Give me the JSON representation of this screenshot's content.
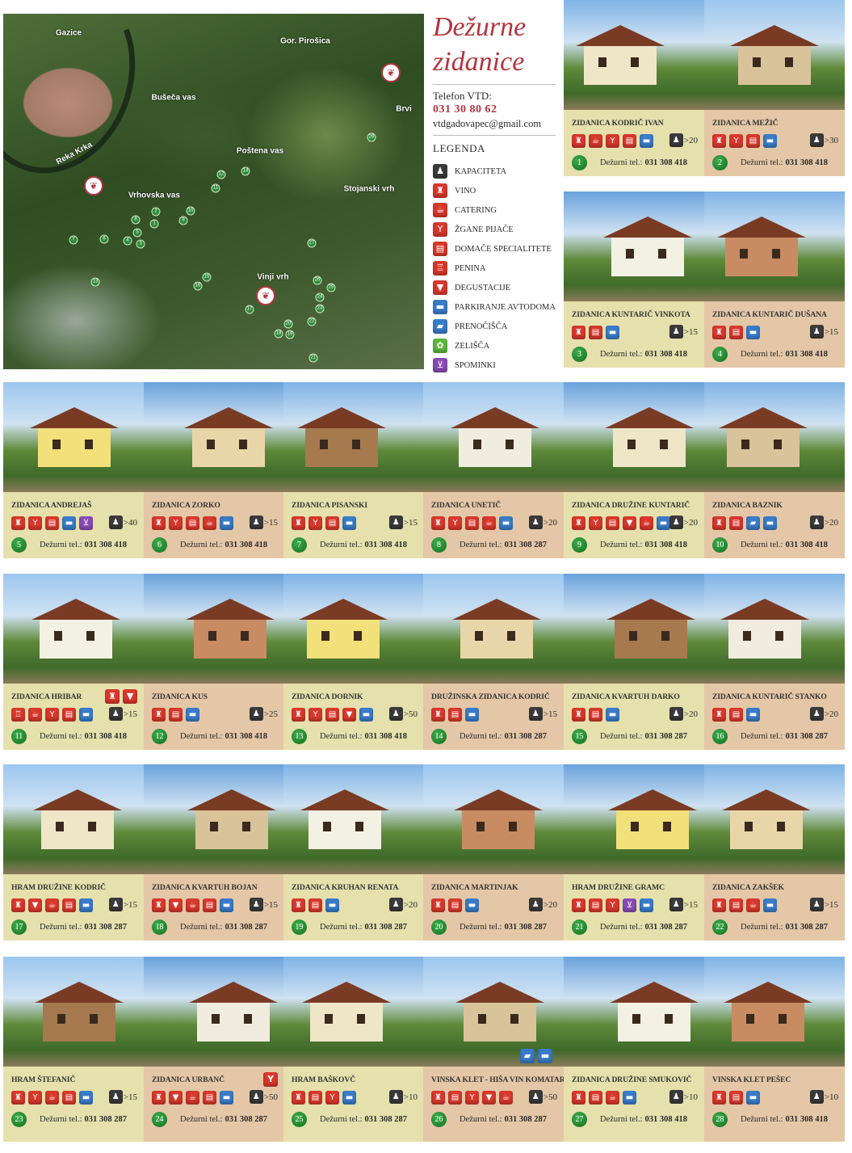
{
  "header": {
    "title_line1": "Dežurne",
    "title_line2": "zidanice",
    "phone_label": "Telefon VTD:",
    "phone": "031 30 80 62",
    "email": "vtdgadovapec@gmail.com",
    "legend_title": "LEGENDA"
  },
  "legend": [
    {
      "code": "K",
      "icon": "person-capacity-icon",
      "label": "KAPACITETA"
    },
    {
      "code": "V",
      "icon": "wine-bottle-icon",
      "label": "VINO"
    },
    {
      "code": "C",
      "icon": "catering-plate-icon",
      "label": "CATERING"
    },
    {
      "code": "Z",
      "icon": "cocktail-glass-icon",
      "label": "ŽGANE PIJAČE"
    },
    {
      "code": "D",
      "icon": "home-food-icon",
      "label": "DOMAČE SPECIALITETE"
    },
    {
      "code": "P",
      "icon": "sparkling-wine-icon",
      "label": "PENINA"
    },
    {
      "code": "G",
      "icon": "tasting-glass-icon",
      "label": "DEGUSTACIJE"
    },
    {
      "code": "A",
      "icon": "camper-van-icon",
      "label": "PARKIRANJE AVTODOMA"
    },
    {
      "code": "N",
      "icon": "bed-icon",
      "label": "PRENOČIŠČA"
    },
    {
      "code": "E",
      "icon": "herb-icon",
      "label": "ZELIŠČA"
    },
    {
      "code": "S",
      "icon": "souvenir-basket-icon",
      "label": "SPOMINKI"
    }
  ],
  "icon_colors": {
    "red": "#d9382c",
    "blue": "#3a7cc9",
    "green": "#5cb83e",
    "purple": "#8a4bb5",
    "dark": "#3a3a3a",
    "title": "#b3343f",
    "card_yellow": "#e6e0ad",
    "card_tan": "#e4c7a6"
  },
  "phone_label": "Dežurni tel.:",
  "map": {
    "labels": [
      "Gazice",
      "Gor. Pirošica",
      "Bušeča vas",
      "Brvi",
      "Reka Krka",
      "Poštena vas",
      "Vrhovska vas",
      "Stojanski vrh",
      "Vinji vrh"
    ],
    "markers": [
      "1",
      "2",
      "3",
      "4",
      "5",
      "6",
      "7",
      "8",
      "9",
      "10",
      "11",
      "12",
      "13",
      "14",
      "15",
      "16",
      "17",
      "18",
      "19",
      "20",
      "21",
      "22",
      "23",
      "24",
      "25",
      "26",
      "27",
      "28"
    ]
  },
  "cards": [
    {
      "num": "1",
      "name": "ZIDANICA KODRIČ IVAN",
      "icons": [
        "V",
        "C",
        "Z",
        "D",
        "A"
      ],
      "capacity": ">20",
      "phone": "031 308 418"
    },
    {
      "num": "2",
      "name": "ZIDANICA MEŽIČ",
      "icons": [
        "V",
        "Z",
        "D",
        "A"
      ],
      "capacity": ">30",
      "phone": "031 308 418"
    },
    {
      "num": "3",
      "name": "ZIDANICA KUNTARIČ VINKOTA",
      "icons": [
        "V",
        "D",
        "A"
      ],
      "capacity": ">15",
      "phone": "031 308 418"
    },
    {
      "num": "4",
      "name": "ZIDANICA KUNTARIČ DUŠANA",
      "icons": [
        "V",
        "D",
        "A"
      ],
      "capacity": ">15",
      "phone": "031 308 418"
    },
    {
      "num": "5",
      "name": "ZIDANICA ANDREJAŠ",
      "icons": [
        "V",
        "Z",
        "D",
        "A",
        "S"
      ],
      "capacity": ">40",
      "phone": "031 308 418"
    },
    {
      "num": "6",
      "name": "ZIDANICA ZORKO",
      "icons": [
        "V",
        "Z",
        "D",
        "C",
        "A"
      ],
      "capacity": ">15",
      "phone": "031 308 418"
    },
    {
      "num": "7",
      "name": "ZIDANICA PISANSKI",
      "icons": [
        "V",
        "Z",
        "D",
        "A"
      ],
      "capacity": ">15",
      "phone": "031 308 418"
    },
    {
      "num": "8",
      "name": "ZIDANICA UNETIČ",
      "icons": [
        "V",
        "Z",
        "D",
        "C",
        "A"
      ],
      "capacity": ">20",
      "phone": "031 308 287"
    },
    {
      "num": "9",
      "name": "ZIDANICA DRUŽINE KUNTARIČ",
      "icons": [
        "V",
        "Z",
        "D",
        "G",
        "C",
        "A"
      ],
      "capacity": ">20",
      "phone": "031 308 418"
    },
    {
      "num": "10",
      "name": "ZIDANICA BAZNIK",
      "icons": [
        "V",
        "D",
        "N",
        "A"
      ],
      "capacity": ">20",
      "phone": "031 308 418"
    },
    {
      "num": "11",
      "name": "ZIDANICA HRIBAR",
      "title_icons": [
        "V",
        "G"
      ],
      "icons": [
        "P",
        "C",
        "Z",
        "D",
        "A"
      ],
      "capacity": ">15",
      "phone": "031 308 418"
    },
    {
      "num": "12",
      "name": "ZIDANICA KUS",
      "icons": [
        "V",
        "D",
        "A"
      ],
      "capacity": ">25",
      "phone": "031 308 418"
    },
    {
      "num": "13",
      "name": "ZIDANICA DORNIK",
      "icons": [
        "V",
        "Z",
        "D",
        "G",
        "A"
      ],
      "capacity": ">50",
      "phone": "031 308 418"
    },
    {
      "num": "14",
      "name": "DRUŽINSKA ZIDANICA KODRIČ",
      "icons": [
        "V",
        "D",
        "A"
      ],
      "capacity": ">15",
      "phone": "031 308 287"
    },
    {
      "num": "15",
      "name": "ZIDANICA KVARTUH DARKO",
      "icons": [
        "V",
        "D",
        "A"
      ],
      "capacity": ">20",
      "phone": "031 308 287"
    },
    {
      "num": "16",
      "name": "ZIDANICA KUNTARIČ STANKO",
      "icons": [
        "V",
        "D",
        "A"
      ],
      "capacity": ">20",
      "phone": "031 308 287"
    },
    {
      "num": "17",
      "name": "HRAM DRUŽINE KODRIČ",
      "icons": [
        "V",
        "G",
        "C",
        "D",
        "A"
      ],
      "capacity": ">15",
      "phone": "031 308 287"
    },
    {
      "num": "18",
      "name": "ZIDANICA KVARTUH BOJAN",
      "icons": [
        "V",
        "G",
        "C",
        "D",
        "A"
      ],
      "capacity": ">15",
      "phone": "031 308 287"
    },
    {
      "num": "19",
      "name": "ZIDANICA KRUHAN RENATA",
      "icons": [
        "V",
        "D",
        "A"
      ],
      "capacity": ">20",
      "phone": "031 308 287"
    },
    {
      "num": "20",
      "name": "ZIDANICA MARTINJAK",
      "icons": [
        "V",
        "D",
        "A"
      ],
      "capacity": ">20",
      "phone": "031 308 287"
    },
    {
      "num": "21",
      "name": "HRAM DRUŽINE GRAMC",
      "icons": [
        "V",
        "D",
        "Z",
        "S",
        "A"
      ],
      "capacity": ">15",
      "phone": "031 308 287"
    },
    {
      "num": "22",
      "name": "ZIDANICA ZAKŠEK",
      "icons": [
        "V",
        "D",
        "C",
        "A"
      ],
      "capacity": ">15",
      "phone": "031 308 287"
    },
    {
      "num": "23",
      "name": "HRAM ŠTEFANIČ",
      "icons": [
        "V",
        "Z",
        "C",
        "D",
        "A"
      ],
      "capacity": ">15",
      "phone": "031 308 287"
    },
    {
      "num": "24",
      "name": "ZIDANICA URBANČ",
      "title_icons": [
        "Z"
      ],
      "icons": [
        "V",
        "G",
        "C",
        "D",
        "A"
      ],
      "capacity": ">50",
      "phone": "031 308 287"
    },
    {
      "num": "25",
      "name": "HRAM BAŠKOVČ",
      "icons": [
        "V",
        "D",
        "Z",
        "A"
      ],
      "capacity": ">10",
      "phone": "031 308 287"
    },
    {
      "num": "26",
      "name": "VINSKA KLET - HIŠA VIN KOMATAR",
      "photo_icons": [
        "N",
        "A"
      ],
      "icons": [
        "V",
        "D",
        "Z",
        "G",
        "C"
      ],
      "capacity": ">50",
      "phone": "031 308 287"
    },
    {
      "num": "27",
      "name": "ZIDANICA DRUŽINE SMUKOVIČ",
      "icons": [
        "V",
        "D",
        "C",
        "A"
      ],
      "capacity": ">10",
      "phone": "031 308 418"
    },
    {
      "num": "28",
      "name": "VINSKA KLET PEŠEC",
      "icons": [
        "V",
        "D",
        "A"
      ],
      "capacity": ">10",
      "phone": "031 308 418"
    }
  ]
}
